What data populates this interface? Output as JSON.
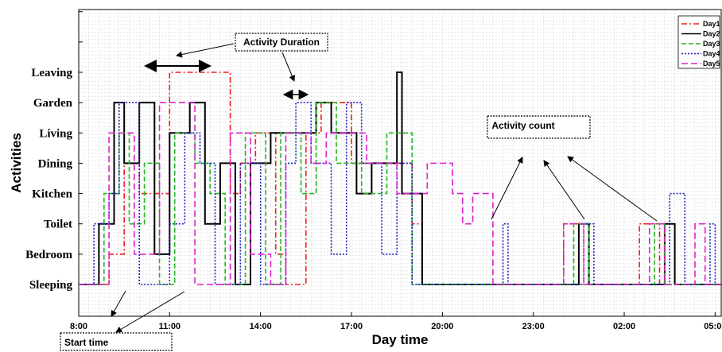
{
  "chart_data": {
    "type": "line",
    "step": true,
    "xlabel": "Day time",
    "ylabel": "Activities",
    "x_ticks": [
      "8:00",
      "11:00",
      "14:00",
      "17:00",
      "20:00",
      "23:00",
      "02:00",
      "05:00"
    ],
    "y_categories": [
      "Sleeping",
      "Bedroom",
      "Toilet",
      "Kitchen",
      "Dining",
      "Living",
      "Garden",
      "Leaving"
    ],
    "x_range_hours": [
      8.0,
      5.2
    ],
    "grid": true,
    "legend_position": "top-right",
    "series": [
      {
        "name": "Day1",
        "color": "#e8211f",
        "dash": "7,3,2,3",
        "points": [
          [
            "8:00",
            0
          ],
          [
            "9:00",
            1
          ],
          [
            "9:30",
            4
          ],
          [
            "10:00",
            3
          ],
          [
            "11:00",
            7
          ],
          [
            "13:00",
            3
          ],
          [
            "13:20",
            4
          ],
          [
            "13:50",
            5
          ],
          [
            "14:30",
            1
          ],
          [
            "14:50",
            0
          ],
          [
            "15:30",
            5
          ],
          [
            "16:00",
            6
          ],
          [
            "17:00",
            4
          ],
          [
            "18:20",
            4
          ],
          [
            "19:00",
            2
          ],
          [
            "19:20",
            0
          ],
          [
            "0:00",
            2
          ],
          [
            "0:30",
            0
          ],
          [
            "2:30",
            2
          ],
          [
            "3:10",
            0
          ],
          [
            "5:20",
            0
          ]
        ]
      },
      {
        "name": "Day2",
        "color": "#000000",
        "dash": "",
        "points": [
          [
            "8:00",
            0
          ],
          [
            "8:40",
            2
          ],
          [
            "9:10",
            6
          ],
          [
            "9:30",
            4
          ],
          [
            "10:00",
            6
          ],
          [
            "10:30",
            1
          ],
          [
            "11:00",
            5
          ],
          [
            "11:40",
            6
          ],
          [
            "12:10",
            2
          ],
          [
            "12:40",
            4
          ],
          [
            "13:10",
            0
          ],
          [
            "13:40",
            4
          ],
          [
            "14:20",
            5
          ],
          [
            "15:50",
            6
          ],
          [
            "16:20",
            5
          ],
          [
            "17:10",
            3
          ],
          [
            "17:40",
            4
          ],
          [
            "18:30",
            7
          ],
          [
            "18:40",
            3
          ],
          [
            "19:20",
            0
          ],
          [
            "0:30",
            2
          ],
          [
            "0:50",
            0
          ],
          [
            "3:20",
            2
          ],
          [
            "3:40",
            0
          ],
          [
            "5:20",
            0
          ]
        ]
      },
      {
        "name": "Day3",
        "color": "#22b722",
        "dash": "6,3",
        "points": [
          [
            "8:00",
            0
          ],
          [
            "8:50",
            3
          ],
          [
            "9:20",
            5
          ],
          [
            "9:40",
            2
          ],
          [
            "10:10",
            4
          ],
          [
            "10:40",
            0
          ],
          [
            "11:10",
            5
          ],
          [
            "11:50",
            4
          ],
          [
            "12:20",
            3
          ],
          [
            "12:50",
            0
          ],
          [
            "13:30",
            5
          ],
          [
            "14:10",
            0
          ],
          [
            "14:40",
            5
          ],
          [
            "15:20",
            3
          ],
          [
            "15:50",
            6
          ],
          [
            "16:30",
            4
          ],
          [
            "17:20",
            3
          ],
          [
            "18:10",
            5
          ],
          [
            "19:00",
            0
          ],
          [
            "0:20",
            2
          ],
          [
            "0:50",
            0
          ],
          [
            "3:00",
            2
          ],
          [
            "3:20",
            0
          ],
          [
            "5:20",
            0
          ]
        ]
      },
      {
        "name": "Day4",
        "color": "#1f1fbf",
        "dash": "2,2",
        "points": [
          [
            "8:00",
            0
          ],
          [
            "8:30",
            2
          ],
          [
            "9:00",
            3
          ],
          [
            "9:20",
            6
          ],
          [
            "10:00",
            0
          ],
          [
            "11:00",
            2
          ],
          [
            "11:30",
            5
          ],
          [
            "12:00",
            4
          ],
          [
            "12:30",
            0
          ],
          [
            "13:20",
            4
          ],
          [
            "14:00",
            0
          ],
          [
            "14:50",
            4
          ],
          [
            "15:10",
            6
          ],
          [
            "15:40",
            4
          ],
          [
            "16:20",
            1
          ],
          [
            "16:50",
            6
          ],
          [
            "17:20",
            4
          ],
          [
            "18:00",
            1
          ],
          [
            "18:30",
            4
          ],
          [
            "19:00",
            0
          ],
          [
            "22:00",
            2
          ],
          [
            "22:10",
            0
          ],
          [
            "0:40",
            2
          ],
          [
            "1:00",
            0
          ],
          [
            "3:30",
            3
          ],
          [
            "4:00",
            0
          ],
          [
            "4:50",
            2
          ],
          [
            "5:00",
            0
          ],
          [
            "5:20",
            0
          ]
        ]
      },
      {
        "name": "Day5",
        "color": "#e020d0",
        "dash": "8,4",
        "points": [
          [
            "8:00",
            0
          ],
          [
            "9:00",
            5
          ],
          [
            "9:50",
            1
          ],
          [
            "10:40",
            6
          ],
          [
            "11:50",
            0
          ],
          [
            "13:00",
            5
          ],
          [
            "13:40",
            1
          ],
          [
            "14:20",
            0
          ],
          [
            "14:50",
            5
          ],
          [
            "15:40",
            4
          ],
          [
            "16:10",
            5
          ],
          [
            "17:30",
            4
          ],
          [
            "18:30",
            3
          ],
          [
            "19:30",
            4
          ],
          [
            "20:20",
            3
          ],
          [
            "20:40",
            2
          ],
          [
            "21:00",
            3
          ],
          [
            "21:40",
            0
          ],
          [
            "0:00",
            2
          ],
          [
            "0:40",
            0
          ],
          [
            "2:50",
            2
          ],
          [
            "3:20",
            0
          ],
          [
            "4:20",
            2
          ],
          [
            "4:40",
            0
          ],
          [
            "5:20",
            0
          ]
        ]
      }
    ],
    "annotations": [
      "Activity Duration",
      "Activity count",
      "Start time"
    ]
  }
}
